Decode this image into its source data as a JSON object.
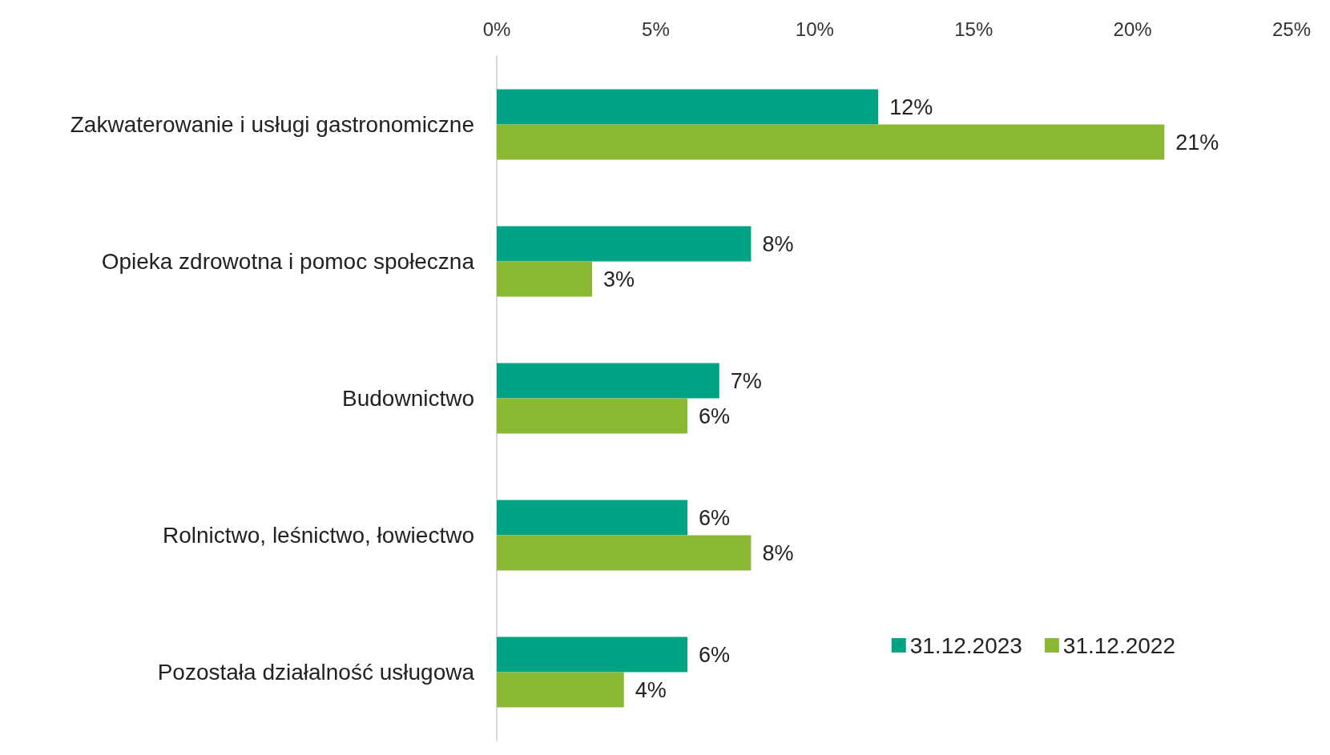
{
  "chart_data": {
    "type": "bar",
    "orientation": "horizontal",
    "categories": [
      "Zakwaterowanie i usługi gastronomiczne",
      "Opieka zdrowotna i pomoc społeczna",
      "Budownictwo",
      "Rolnictwo, leśnictwo, łowiectwo",
      "Pozostała działalność usługowa"
    ],
    "series": [
      {
        "name": "31.12.2023",
        "color": "#00a383",
        "values": [
          12,
          8,
          7,
          6,
          6
        ],
        "value_labels": [
          "12%",
          "8%",
          "7%",
          "6%",
          "6%"
        ]
      },
      {
        "name": "31.12.2022",
        "color": "#8ab833",
        "values": [
          21,
          3,
          6,
          8,
          4
        ],
        "value_labels": [
          "21%",
          "3%",
          "6%",
          "8%",
          "4%"
        ]
      }
    ],
    "xlim": [
      0,
      25
    ],
    "xticks": [
      {
        "value": 0,
        "label": "0%"
      },
      {
        "value": 5,
        "label": "5%"
      },
      {
        "value": 10,
        "label": "10%"
      },
      {
        "value": 15,
        "label": "15%"
      },
      {
        "value": 20,
        "label": "20%"
      },
      {
        "value": 25,
        "label": "25%"
      }
    ],
    "grid": false,
    "legend": "bottom right"
  }
}
